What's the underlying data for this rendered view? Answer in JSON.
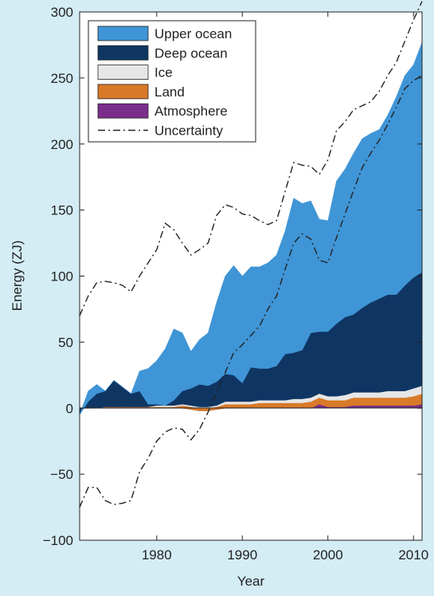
{
  "chart_data": {
    "type": "area",
    "xlabel": "Year",
    "ylabel": "Energy (ZJ)",
    "xlim": [
      1971,
      2011
    ],
    "ylim": [
      -100,
      300
    ],
    "xticks": [
      1980,
      1990,
      2000,
      2010
    ],
    "yticks": [
      -100,
      -50,
      0,
      50,
      100,
      150,
      200,
      250,
      300
    ],
    "stacked": true,
    "legend_position": "top-left",
    "x": [
      1971,
      1972,
      1973,
      1974,
      1975,
      1976,
      1977,
      1978,
      1979,
      1980,
      1981,
      1982,
      1983,
      1984,
      1985,
      1986,
      1987,
      1988,
      1989,
      1990,
      1991,
      1992,
      1993,
      1994,
      1995,
      1996,
      1997,
      1998,
      1999,
      2000,
      2001,
      2002,
      2003,
      2004,
      2005,
      2006,
      2007,
      2008,
      2009,
      2010,
      2011
    ],
    "series": [
      {
        "name": "Atmosphere",
        "color": "#7b2d8c",
        "values": [
          0,
          0,
          0,
          0,
          0,
          0,
          0,
          0,
          0,
          0,
          0,
          0,
          0,
          -1,
          -2,
          -2,
          -1,
          0,
          0,
          0,
          0,
          0,
          0,
          0,
          0,
          0,
          0,
          0,
          3,
          1,
          1,
          1,
          2,
          2,
          2,
          2,
          2,
          2,
          2,
          2,
          3
        ]
      },
      {
        "name": "Land",
        "color": "#d97a28",
        "values": [
          0,
          0,
          0,
          1,
          1,
          1,
          1,
          1,
          1,
          1,
          1,
          1,
          2,
          2,
          2,
          2,
          2,
          3,
          3,
          3,
          3,
          4,
          4,
          4,
          4,
          4,
          4,
          5,
          5,
          5,
          5,
          5,
          6,
          6,
          6,
          6,
          6,
          6,
          6,
          7,
          8
        ]
      },
      {
        "name": "Ice",
        "color": "#e6e6e6",
        "values": [
          0,
          0,
          0,
          0,
          0,
          0,
          0,
          0,
          0,
          1,
          1,
          1,
          1,
          1,
          1,
          1,
          1,
          2,
          2,
          2,
          2,
          2,
          2,
          2,
          2,
          3,
          3,
          3,
          3,
          3,
          3,
          4,
          4,
          4,
          4,
          4,
          5,
          5,
          5,
          6,
          6
        ]
      },
      {
        "name": "Deep ocean",
        "color": "#0f3663",
        "values": [
          -5,
          5,
          11,
          12,
          20,
          15,
          10,
          12,
          2,
          1,
          0,
          4,
          10,
          13,
          17,
          16,
          18,
          21,
          20,
          14,
          26,
          24,
          24,
          26,
          35,
          35,
          37,
          49,
          47,
          49,
          55,
          59,
          59,
          64,
          68,
          71,
          73,
          73,
          80,
          84,
          86
        ]
      },
      {
        "name": "Upper ocean",
        "color": "#3f95d6",
        "values": [
          0,
          8,
          7,
          0,
          0,
          0,
          0,
          15,
          27,
          33,
          43,
          54,
          44,
          28,
          34,
          40,
          60,
          74,
          83,
          81,
          76,
          77,
          80,
          84,
          93,
          117,
          111,
          100,
          85,
          84,
          108,
          112,
          122,
          128,
          128,
          128,
          136,
          150,
          159,
          161,
          174
        ]
      }
    ],
    "uncertainty_name": "Uncertainty",
    "uncertainty_upper": [
      70,
      85,
      95,
      96,
      95,
      93,
      88,
      100,
      110,
      120,
      140,
      135,
      125,
      116,
      120,
      125,
      146,
      154,
      152,
      147,
      146,
      142,
      139,
      142,
      164,
      186,
      184,
      183,
      177,
      188,
      210,
      217,
      226,
      229,
      232,
      240,
      252,
      262,
      278,
      294,
      308
    ],
    "uncertainty_lower": [
      -75,
      -60,
      -60,
      -70,
      -73,
      -72,
      -70,
      -48,
      -38,
      -25,
      -18,
      -15,
      -16,
      -24,
      -16,
      -3,
      12,
      27,
      42,
      48,
      55,
      62,
      75,
      85,
      105,
      125,
      132,
      128,
      112,
      110,
      129,
      147,
      165,
      182,
      193,
      203,
      215,
      228,
      242,
      248,
      252
    ]
  }
}
